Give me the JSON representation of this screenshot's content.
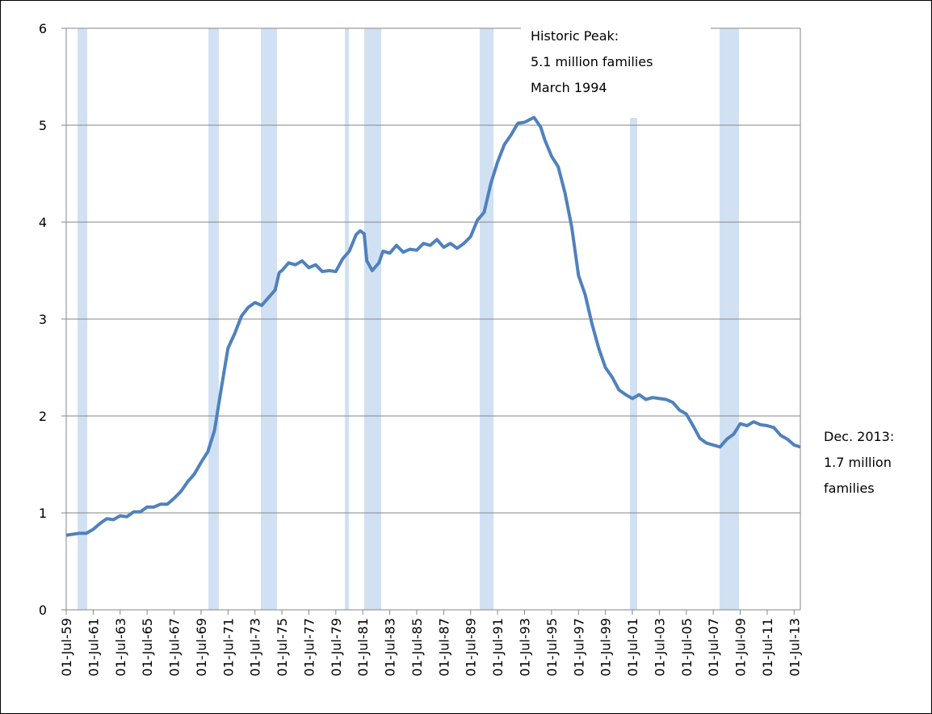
{
  "chart_data": {
    "type": "line",
    "x": [
      1959.5,
      1960.5,
      1961.0,
      1961.5,
      1962.0,
      1962.5,
      1963.0,
      1963.5,
      1964.0,
      1964.5,
      1965.0,
      1965.5,
      1966.0,
      1966.5,
      1967.0,
      1967.5,
      1968.0,
      1968.5,
      1969.0,
      1969.5,
      1970.0,
      1970.5,
      1971.0,
      1971.5,
      1972.0,
      1972.5,
      1973.0,
      1973.5,
      1974.0,
      1974.5,
      1975.0,
      1975.3,
      1975.5,
      1976.0,
      1976.5,
      1977.0,
      1977.5,
      1978.0,
      1978.5,
      1979.0,
      1979.5,
      1980.0,
      1980.5,
      1981.0,
      1981.3,
      1981.6,
      1981.8,
      1982.2,
      1982.7,
      1983.0,
      1983.5,
      1984.0,
      1984.5,
      1985.0,
      1985.5,
      1986.0,
      1986.5,
      1987.0,
      1987.5,
      1988.0,
      1988.5,
      1989.0,
      1989.5,
      1990.0,
      1990.5,
      1991.0,
      1991.5,
      1992.0,
      1992.5,
      1993.0,
      1993.5,
      1994.2,
      1994.7,
      1995.0,
      1995.5,
      1996.0,
      1996.5,
      1997.0,
      1997.5,
      1998.0,
      1998.5,
      1999.0,
      1999.5,
      2000.0,
      2000.5,
      2001.0,
      2001.5,
      2002.0,
      2002.5,
      2003.0,
      2003.5,
      2004.0,
      2004.5,
      2005.0,
      2005.5,
      2006.0,
      2006.5,
      2007.0,
      2007.5,
      2008.0,
      2008.5,
      2009.0,
      2009.5,
      2010.0,
      2010.5,
      2011.0,
      2011.5,
      2012.0,
      2012.5,
      2013.0,
      2013.5,
      2013.95
    ],
    "series": [
      {
        "color": "#4f81bd",
        "values": [
          0.77,
          0.79,
          0.79,
          0.83,
          0.89,
          0.94,
          0.93,
          0.97,
          0.96,
          1.01,
          1.01,
          1.06,
          1.06,
          1.09,
          1.09,
          1.15,
          1.22,
          1.32,
          1.4,
          1.52,
          1.63,
          1.85,
          2.28,
          2.7,
          2.85,
          3.03,
          3.12,
          3.17,
          3.14,
          3.22,
          3.3,
          3.48,
          3.5,
          3.58,
          3.56,
          3.6,
          3.53,
          3.56,
          3.49,
          3.5,
          3.49,
          3.62,
          3.7,
          3.87,
          3.91,
          3.88,
          3.6,
          3.5,
          3.58,
          3.7,
          3.68,
          3.76,
          3.69,
          3.72,
          3.71,
          3.78,
          3.76,
          3.82,
          3.74,
          3.78,
          3.73,
          3.78,
          3.85,
          4.02,
          4.1,
          4.4,
          4.62,
          4.8,
          4.9,
          5.02,
          5.03,
          5.08,
          4.98,
          4.85,
          4.68,
          4.57,
          4.3,
          3.95,
          3.45,
          3.25,
          2.95,
          2.7,
          2.5,
          2.4,
          2.27,
          2.22,
          2.18,
          2.22,
          2.17,
          2.19,
          2.18,
          2.17,
          2.14,
          2.06,
          2.02,
          1.9,
          1.77,
          1.72,
          1.7,
          1.68,
          1.76,
          1.81,
          1.92,
          1.9,
          1.94,
          1.91,
          1.9,
          1.88,
          1.8,
          1.76,
          1.7,
          1.68
        ]
      }
    ],
    "recessions": [
      [
        1960.34,
        1961.06
      ],
      [
        1970.05,
        1970.82
      ],
      [
        1973.94,
        1975.14
      ],
      [
        1980.17,
        1980.47
      ],
      [
        1981.6,
        1982.87
      ],
      [
        1990.18,
        1991.2
      ],
      [
        2001.32,
        2001.86
      ],
      [
        2007.97,
        2009.41
      ]
    ],
    "recession_color": "#c6daf0",
    "xlim": [
      1959.5,
      2013.96
    ],
    "ylim": [
      0,
      6
    ],
    "yticks": [
      0,
      1,
      2,
      3,
      4,
      5,
      6
    ],
    "xticks": [
      {
        "value": 1959.5,
        "label": "01-Jul-59"
      },
      {
        "value": 1961.5,
        "label": "01-Jul-61"
      },
      {
        "value": 1963.5,
        "label": "01-Jul-63"
      },
      {
        "value": 1965.5,
        "label": "01-Jul-65"
      },
      {
        "value": 1967.5,
        "label": "01-Jul-67"
      },
      {
        "value": 1969.5,
        "label": "01-Jul-69"
      },
      {
        "value": 1971.5,
        "label": "01-Jul-71"
      },
      {
        "value": 1973.5,
        "label": "01-Jul-73"
      },
      {
        "value": 1975.5,
        "label": "01-Jul-75"
      },
      {
        "value": 1977.5,
        "label": "01-Jul-77"
      },
      {
        "value": 1979.5,
        "label": "01-Jul-79"
      },
      {
        "value": 1981.5,
        "label": "01-Jul-81"
      },
      {
        "value": 1983.5,
        "label": "01-Jul-83"
      },
      {
        "value": 1985.5,
        "label": "01-Jul-85"
      },
      {
        "value": 1987.5,
        "label": "01-Jul-87"
      },
      {
        "value": 1989.5,
        "label": "01-Jul-89"
      },
      {
        "value": 1991.5,
        "label": "01-Jul-91"
      },
      {
        "value": 1993.5,
        "label": "01-Jul-93"
      },
      {
        "value": 1995.5,
        "label": "01-Jul-95"
      },
      {
        "value": 1997.5,
        "label": "01-Jul-97"
      },
      {
        "value": 1999.5,
        "label": "01-Jul-99"
      },
      {
        "value": 2001.5,
        "label": "01-Jul-01"
      },
      {
        "value": 2003.5,
        "label": "01-Jul-03"
      },
      {
        "value": 2005.5,
        "label": "01-Jul-05"
      },
      {
        "value": 2007.5,
        "label": "01-Jul-07"
      },
      {
        "value": 2009.5,
        "label": "01-Jul-09"
      },
      {
        "value": 2011.5,
        "label": "01-Jul-11"
      },
      {
        "value": 2013.5,
        "label": "01-Jul-13"
      }
    ],
    "grid": true,
    "annotations": [
      [
        "Historic Peak:",
        "5.1 million families",
        "March 1994"
      ],
      [
        "Dec. 2013:",
        "1.7 million",
        "families"
      ]
    ]
  }
}
